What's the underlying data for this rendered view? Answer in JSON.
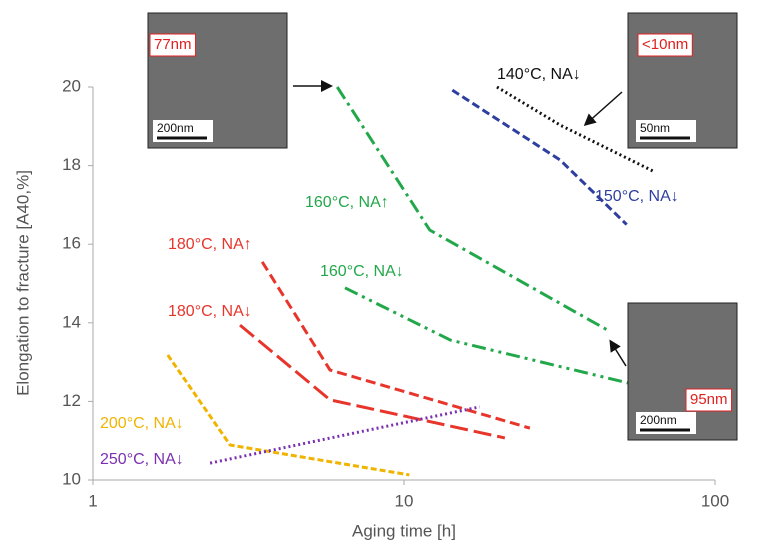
{
  "chart_data": {
    "type": "line",
    "xlabel": "Aging time [h]",
    "ylabel": "Elongation to fracture [A40,%]",
    "xscale": "log",
    "xlim": [
      1,
      100
    ],
    "xticks": [
      1,
      10,
      100
    ],
    "ylim": [
      10,
      20
    ],
    "yticks": [
      10,
      12,
      14,
      16,
      18,
      20
    ],
    "series": [
      {
        "name": "140°C, NA↓",
        "color": "#111111",
        "x": [
          19.9,
          31.8,
          64
        ],
        "values": [
          20.0,
          19.03,
          17.84
        ]
      },
      {
        "name": "150°C, NA↓",
        "color": "#2f3fa0",
        "x": [
          14.3,
          31.8,
          52
        ],
        "values": [
          19.92,
          18.14,
          16.5
        ]
      },
      {
        "name": "160°C, NA↑",
        "color": "#22a84a",
        "x": [
          6.1,
          12.1,
          45
        ],
        "values": [
          20.0,
          16.36,
          13.82
        ]
      },
      {
        "name": "160°C, NA↓",
        "color": "#22a84a",
        "x": [
          6.46,
          14.1,
          52.5
        ],
        "values": [
          14.89,
          13.56,
          12.47
        ]
      },
      {
        "name": "180°C, NA↑",
        "color": "#e8352b",
        "x": [
          3.5,
          5.78,
          25.4
        ],
        "values": [
          15.55,
          12.8,
          11.32
        ]
      },
      {
        "name": "180°C, NA↓",
        "color": "#e8352b",
        "x": [
          2.97,
          5.78,
          21.1
        ],
        "values": [
          13.94,
          12.04,
          11.07
        ]
      },
      {
        "name": "200°C, NA↓",
        "color": "#f0b400",
        "x": [
          1.74,
          2.76,
          10.4
        ],
        "values": [
          13.18,
          10.89,
          10.13
        ]
      },
      {
        "name": "250°C, NA↓",
        "color": "#7a30b0",
        "x": [
          2.38,
          17.5
        ],
        "values": [
          10.43,
          11.86
        ]
      }
    ],
    "insets": [
      {
        "label": "77nm",
        "scale": "200nm"
      },
      {
        "label": "<10nm",
        "scale": "50nm"
      },
      {
        "label": "95nm",
        "scale": "200nm"
      }
    ]
  }
}
